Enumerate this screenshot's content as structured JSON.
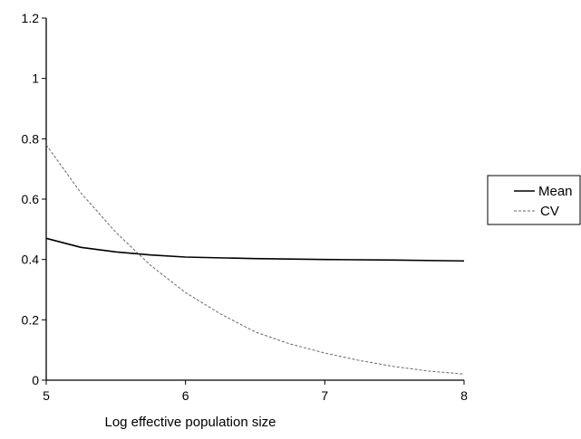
{
  "chart_data": {
    "type": "line",
    "title": "",
    "xlabel": "Log effective population size",
    "ylabel": "",
    "xlim": [
      5,
      8
    ],
    "ylim": [
      0,
      1.2
    ],
    "x_ticks": [
      "5",
      "6",
      "7",
      "8"
    ],
    "y_ticks": [
      "0",
      "0.2",
      "0.4",
      "0.6",
      "0.8",
      "1",
      "1.2"
    ],
    "grid": false,
    "legend_position": "right",
    "series": [
      {
        "name": "Mean",
        "style": "solid",
        "color": "#000000",
        "x": [
          5,
          5.25,
          5.5,
          5.75,
          6,
          6.5,
          7,
          7.5,
          8
        ],
        "y": [
          0.47,
          0.44,
          0.425,
          0.415,
          0.408,
          0.403,
          0.4,
          0.398,
          0.395
        ]
      },
      {
        "name": "CV",
        "style": "dashed",
        "color": "#666666",
        "x": [
          5,
          5.25,
          5.5,
          5.75,
          6,
          6.25,
          6.5,
          6.75,
          7,
          7.25,
          7.5,
          7.75,
          8
        ],
        "y": [
          0.78,
          0.62,
          0.49,
          0.38,
          0.29,
          0.22,
          0.16,
          0.12,
          0.09,
          0.065,
          0.045,
          0.03,
          0.02
        ]
      }
    ]
  }
}
